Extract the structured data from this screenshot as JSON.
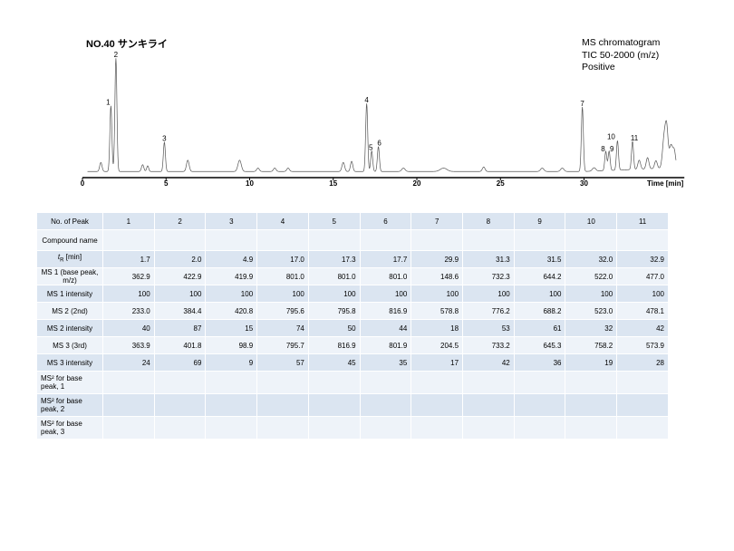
{
  "title": "NO.40 サンキライ",
  "info": [
    "MS chromatogram",
    "TIC 50-2000 (m/z)",
    "Positive"
  ],
  "chart_data": {
    "type": "line",
    "xlabel": "Time [min]",
    "xlim": [
      0,
      36
    ],
    "xticks": [
      0,
      5,
      10,
      15,
      20,
      25,
      30
    ],
    "peaks": [
      {
        "label": "1",
        "x": 1.7,
        "y": 0.58
      },
      {
        "label": "2",
        "x": 2.0,
        "y": 1.0
      },
      {
        "label": "3",
        "x": 4.9,
        "y": 0.26
      },
      {
        "label": "4",
        "x": 17.0,
        "y": 0.6
      },
      {
        "label": "5",
        "x": 17.3,
        "y": 0.18
      },
      {
        "label": "6",
        "x": 17.7,
        "y": 0.22
      },
      {
        "label": "7",
        "x": 29.9,
        "y": 0.57
      },
      {
        "label": "8",
        "x": 31.3,
        "y": 0.17
      },
      {
        "label": "9",
        "x": 31.5,
        "y": 0.17
      },
      {
        "label": "10",
        "x": 32.0,
        "y": 0.26
      },
      {
        "label": "11",
        "x": 32.9,
        "y": 0.25
      }
    ]
  },
  "table": {
    "header": "No. of Peak",
    "peak_numbers": [
      "1",
      "2",
      "3",
      "4",
      "5",
      "6",
      "7",
      "8",
      "9",
      "10",
      "11"
    ],
    "rows": [
      {
        "label": "Compound name",
        "values": [
          "",
          "",
          "",
          "",
          "",
          "",
          "",
          "",
          "",
          "",
          ""
        ]
      },
      {
        "label_pre": "t",
        "label_sub": "R",
        "label_post": " [min]",
        "values": [
          "1.7",
          "2.0",
          "4.9",
          "17.0",
          "17.3",
          "17.7",
          "29.9",
          "31.3",
          "31.5",
          "32.0",
          "32.9"
        ]
      },
      {
        "label": "MS 1 (base peak, m/z)",
        "values": [
          "362.9",
          "422.9",
          "419.9",
          "801.0",
          "801.0",
          "801.0",
          "148.6",
          "732.3",
          "644.2",
          "522.0",
          "477.0"
        ]
      },
      {
        "label": "MS 1 intensity",
        "values": [
          "100",
          "100",
          "100",
          "100",
          "100",
          "100",
          "100",
          "100",
          "100",
          "100",
          "100"
        ]
      },
      {
        "label": "MS 2 (2nd)",
        "values": [
          "233.0",
          "384.4",
          "420.8",
          "795.6",
          "795.8",
          "816.9",
          "578.8",
          "776.2",
          "688.2",
          "523.0",
          "478.1"
        ]
      },
      {
        "label": "MS 2 intensity",
        "values": [
          "40",
          "87",
          "15",
          "74",
          "50",
          "44",
          "18",
          "53",
          "61",
          "32",
          "42"
        ]
      },
      {
        "label": "MS 3 (3rd)",
        "values": [
          "363.9",
          "401.8",
          "98.9",
          "795.7",
          "816.9",
          "801.9",
          "204.5",
          "733.2",
          "645.3",
          "758.2",
          "573.9"
        ]
      },
      {
        "label": "MS 3 intensity",
        "values": [
          "24",
          "69",
          "9",
          "57",
          "45",
          "35",
          "17",
          "42",
          "36",
          "19",
          "28"
        ]
      },
      {
        "label": "MS² for base peak, 1",
        "values": [
          "",
          "",
          "",
          "",
          "",
          "",
          "",
          "",
          "",
          "",
          ""
        ]
      },
      {
        "label": "MS² for base peak, 2",
        "values": [
          "",
          "",
          "",
          "",
          "",
          "",
          "",
          "",
          "",
          "",
          ""
        ]
      },
      {
        "label": "MS² for base peak, 3",
        "values": [
          "",
          "",
          "",
          "",
          "",
          "",
          "",
          "",
          "",
          "",
          ""
        ]
      }
    ]
  }
}
